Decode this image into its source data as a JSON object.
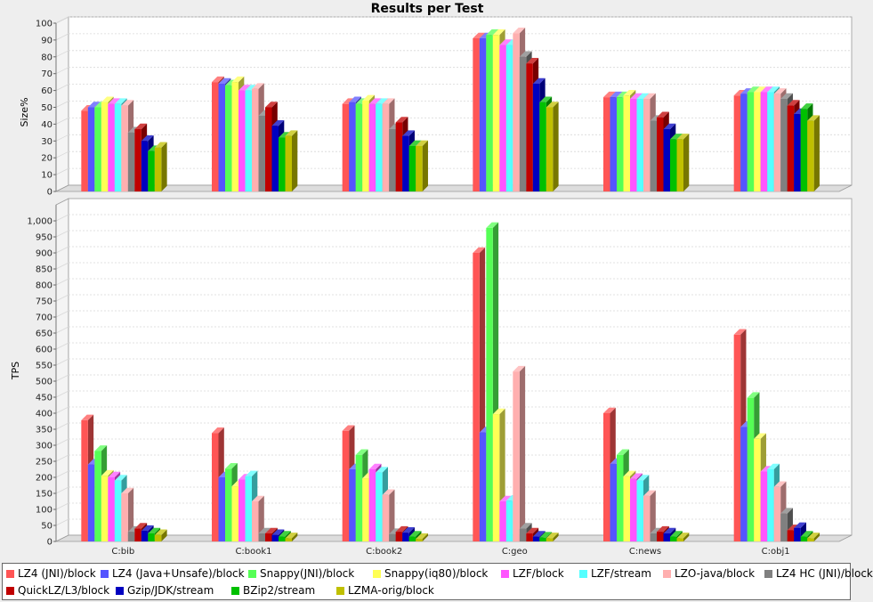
{
  "chart_data": {
    "type": "bar",
    "title": "Results per Test",
    "categories": [
      "C:bib",
      "C:book1",
      "C:book2",
      "C:geo",
      "C:news",
      "C:obj1"
    ],
    "series": [
      {
        "name": "LZ4 (JNI)/block",
        "color": "#ff5555"
      },
      {
        "name": "LZ4 (Java+Unsafe)/block",
        "color": "#5555ff"
      },
      {
        "name": "Snappy(JNI)/block",
        "color": "#55ff55"
      },
      {
        "name": "Snappy(iq80)/block",
        "color": "#ffff55"
      },
      {
        "name": "LZF/block",
        "color": "#ff55ff"
      },
      {
        "name": "LZF/stream",
        "color": "#55ffff"
      },
      {
        "name": "LZO-java/block",
        "color": "#ffafaf"
      },
      {
        "name": "LZ4 HC (JNI)/block",
        "color": "#808080"
      },
      {
        "name": "QuickLZ/L3/block",
        "color": "#c00000"
      },
      {
        "name": "Gzip/JDK/stream",
        "color": "#0000c0"
      },
      {
        "name": "BZip2/stream",
        "color": "#00c000"
      },
      {
        "name": "LZMA-orig/block",
        "color": "#c0c000"
      }
    ],
    "panels": [
      {
        "ylabel": "Size%",
        "ylim": [
          0,
          100
        ],
        "yticks": [
          "0",
          "10",
          "20",
          "30",
          "40",
          "50",
          "60",
          "70",
          "80",
          "90",
          "100"
        ],
        "values": [
          [
            48,
            50,
            50,
            53,
            52,
            52,
            51,
            35,
            37,
            30,
            24,
            26
          ],
          [
            65,
            64,
            63,
            65,
            60,
            60,
            61,
            45,
            50,
            39,
            32,
            33
          ],
          [
            52,
            53,
            52,
            54,
            52,
            52,
            52,
            37,
            41,
            33,
            27,
            27
          ],
          [
            91,
            91,
            93,
            93,
            87,
            87,
            94,
            80,
            76,
            64,
            53,
            50
          ],
          [
            56,
            56,
            56,
            57,
            55,
            55,
            55,
            42,
            44,
            37,
            31,
            31
          ],
          [
            57,
            58,
            59,
            59,
            59,
            59,
            58,
            55,
            51,
            46,
            49,
            42
          ]
        ]
      },
      {
        "ylabel": "TPS",
        "ylim": [
          0,
          1050
        ],
        "yticks": [
          "0",
          "50",
          "100",
          "150",
          "200",
          "250",
          "300",
          "350",
          "400",
          "450",
          "500",
          "550",
          "600",
          "650",
          "700",
          "750",
          "800",
          "850",
          "900",
          "950",
          "1,000"
        ],
        "values": [
          [
            378,
            240,
            282,
            205,
            200,
            190,
            150,
            30,
            40,
            33,
            25,
            20
          ],
          [
            338,
            200,
            227,
            172,
            193,
            203,
            125,
            25,
            25,
            20,
            15,
            10
          ],
          [
            345,
            225,
            270,
            197,
            225,
            215,
            145,
            23,
            30,
            27,
            15,
            8
          ],
          [
            900,
            340,
            978,
            397,
            125,
            127,
            530,
            40,
            25,
            15,
            12,
            10
          ],
          [
            400,
            242,
            270,
            203,
            195,
            190,
            142,
            25,
            30,
            25,
            15,
            10
          ],
          [
            645,
            357,
            448,
            320,
            218,
            225,
            170,
            87,
            35,
            42,
            15,
            10
          ]
        ]
      }
    ]
  }
}
